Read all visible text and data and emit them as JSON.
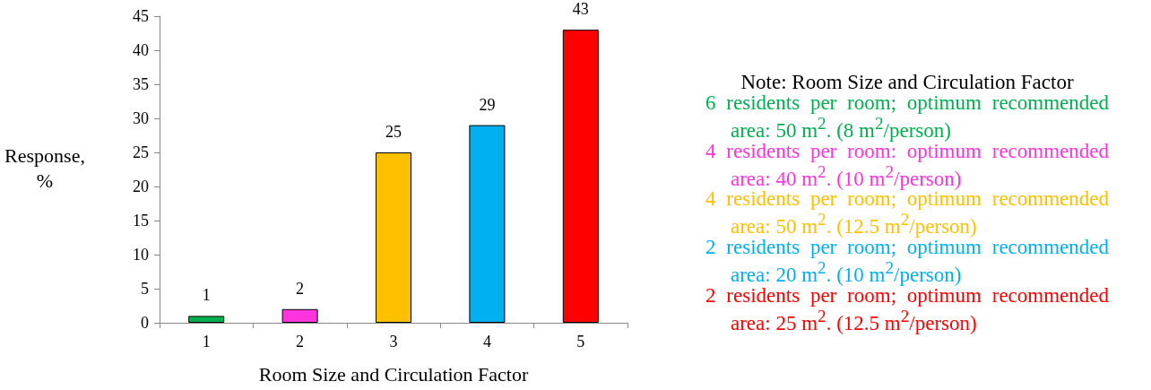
{
  "chart_data": {
    "type": "bar",
    "xlabel": "Room Size and Circulation Factor",
    "ylabel": "Response, %",
    "categories": [
      "1",
      "2",
      "3",
      "4",
      "5"
    ],
    "values": [
      1,
      2,
      25,
      29,
      43
    ],
    "colors": [
      "#00b050",
      "#ff33dd",
      "#ffc000",
      "#00b0f0",
      "#ff0000"
    ],
    "ylim": [
      0,
      45
    ],
    "yticks": [
      0,
      5,
      10,
      15,
      20,
      25,
      30,
      35,
      40,
      45
    ],
    "grid": false,
    "data_labels": true,
    "annotations": [
      "Note: Room Size and Circulation Factor",
      "6 residents per room; optimum recommended area: 50 m$^{2}$. (8 m$^{2}$/person)",
      "4 residents per room: optimum recommended area: 40 m$^{2}$. (10 m$^{2}$/person)",
      "4 residents per room; optimum recommended area: 50 m$^{2}$. (12.5 m$^{2}$/person)",
      "2 residents per room; optimum recommended area: 20 m$^{2}$. (10 m$^{2}$/person)",
      "2 residents per room; optimum recommended area: 25 m$^{2}$. (12.5 m$^{2}$/person)"
    ]
  }
}
